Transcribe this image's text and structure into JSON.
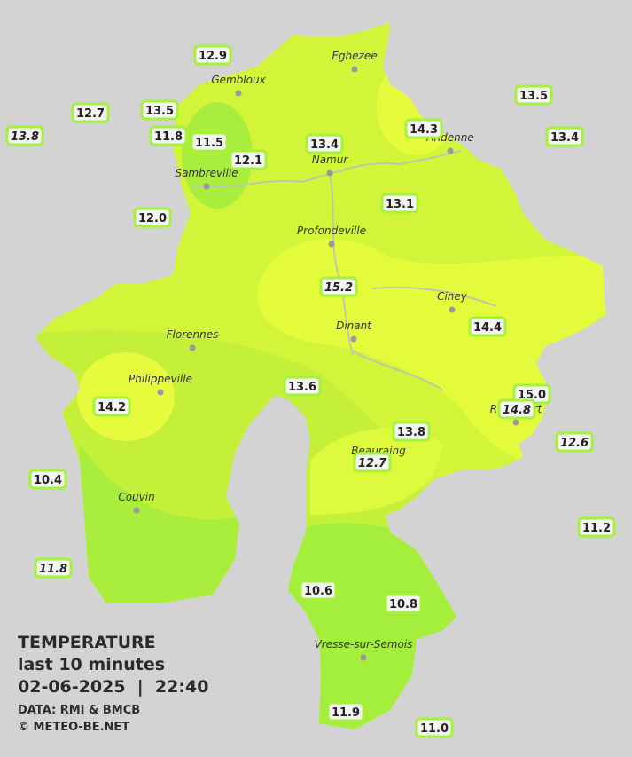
{
  "header": {
    "title": "TEMPERATURE",
    "subtitle": "last 10 minutes",
    "timestamp": "02-06-2025  |  22:40",
    "source": "DATA: RMI & BMCB",
    "credit": "© METEO-BE.NET"
  },
  "cities": [
    {
      "name": "Eghezee"
    },
    {
      "name": "Gembloux"
    },
    {
      "name": "Andenne"
    },
    {
      "name": "Namur"
    },
    {
      "name": "Sambreville"
    },
    {
      "name": "Profondeville"
    },
    {
      "name": "Ciney"
    },
    {
      "name": "Dinant"
    },
    {
      "name": "Florennes"
    },
    {
      "name": "Philippeville"
    },
    {
      "name": "Rochefort"
    },
    {
      "name": "Beauraing"
    },
    {
      "name": "Couvin"
    },
    {
      "name": "Vresse-sur-Semois"
    }
  ],
  "stations": [
    {
      "label": "12.9",
      "italic": false
    },
    {
      "label": "12.7",
      "italic": false
    },
    {
      "label": "13.5",
      "italic": false
    },
    {
      "label": "13.8",
      "italic": true
    },
    {
      "label": "11.8",
      "italic": false
    },
    {
      "label": "11.5",
      "italic": false
    },
    {
      "label": "12.1",
      "italic": false
    },
    {
      "label": "13.4",
      "italic": false
    },
    {
      "label": "14.3",
      "italic": false
    },
    {
      "label": "13.5",
      "italic": false
    },
    {
      "label": "13.4",
      "italic": false
    },
    {
      "label": "12.0",
      "italic": false
    },
    {
      "label": "13.1",
      "italic": false
    },
    {
      "label": "15.2",
      "italic": true
    },
    {
      "label": "14.4",
      "italic": false
    },
    {
      "label": "13.6",
      "italic": false
    },
    {
      "label": "14.2",
      "italic": false
    },
    {
      "label": "15.0",
      "italic": false
    },
    {
      "label": "14.8",
      "italic": true
    },
    {
      "label": "13.8",
      "italic": false
    },
    {
      "label": "12.6",
      "italic": true
    },
    {
      "label": "12.7",
      "italic": true
    },
    {
      "label": "10.4",
      "italic": false
    },
    {
      "label": "11.2",
      "italic": false
    },
    {
      "label": "11.8",
      "italic": true
    },
    {
      "label": "10.6",
      "italic": false
    },
    {
      "label": "10.8",
      "italic": false
    },
    {
      "label": "11.9",
      "italic": false
    },
    {
      "label": "11.0",
      "italic": false
    }
  ]
}
